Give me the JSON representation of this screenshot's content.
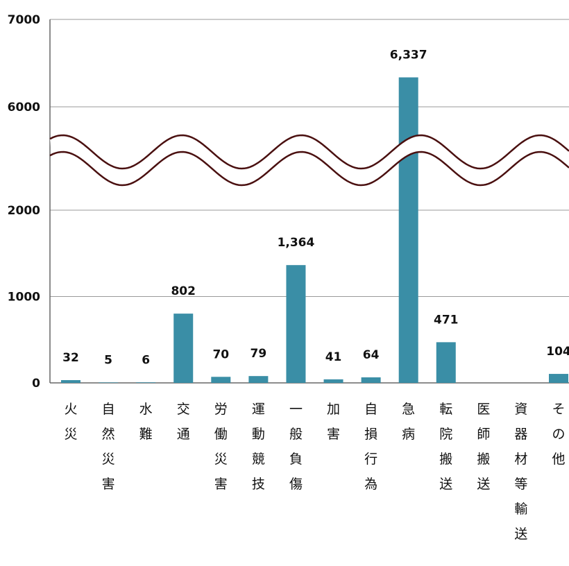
{
  "chart_data": {
    "type": "bar",
    "categories": [
      "火災",
      "自然災害",
      "水難",
      "交通",
      "労働災害",
      "運動競技",
      "一般負傷",
      "加害",
      "自損行為",
      "急病",
      "転院搬送",
      "医師搬送",
      "資器材等輸送",
      "その他"
    ],
    "values": [
      32,
      5,
      6,
      802,
      70,
      79,
      1364,
      41,
      64,
      6337,
      471,
      null,
      null,
      104
    ],
    "data_labels": [
      "32",
      "5",
      "6",
      "802",
      "70",
      "79",
      "1,364",
      "41",
      "64",
      "6,337",
      "471",
      "",
      "",
      "104"
    ],
    "y_ticks": [
      "0",
      "1000",
      "2000",
      "6000",
      "7000"
    ],
    "axis_break": {
      "from": 2000,
      "to": 6000
    },
    "ylim": [
      0,
      7000
    ],
    "grid": true,
    "bar_color": "#3a8ea6",
    "break_line_color": "#4a1010",
    "title": "",
    "xlabel": "",
    "ylabel": ""
  }
}
